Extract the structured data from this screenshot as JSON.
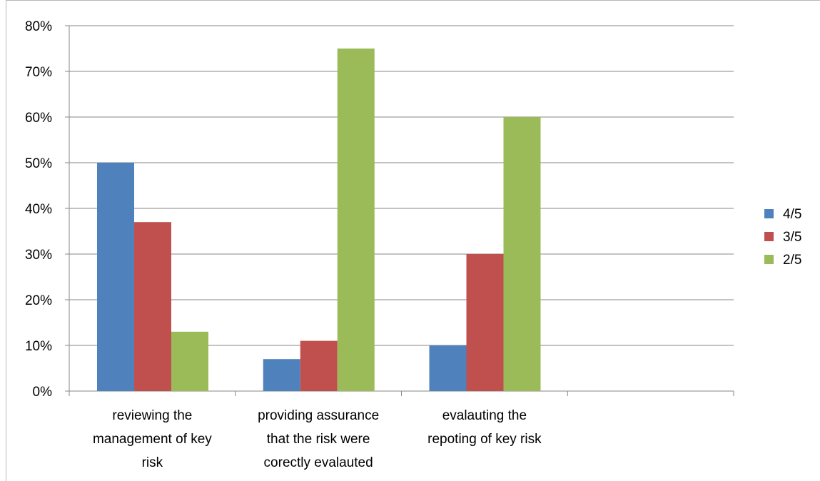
{
  "chart_data": {
    "type": "bar",
    "categories": [
      [
        "reviewing the",
        "management of key",
        "risk"
      ],
      [
        "providing assurance",
        "that the risk were",
        "corectly evalauted"
      ],
      [
        "evalauting the",
        "repoting of key risk"
      ],
      [
        ""
      ]
    ],
    "series": [
      {
        "name": "4/5",
        "color": "#4f81bd",
        "values": [
          50,
          7,
          10,
          null
        ]
      },
      {
        "name": "3/5",
        "color": "#c0504d",
        "values": [
          37,
          11,
          30,
          null
        ]
      },
      {
        "name": "2/5",
        "color": "#9bbb59",
        "values": [
          13,
          75,
          60,
          null
        ]
      }
    ],
    "ylim": [
      0,
      80
    ],
    "yticks": [
      0,
      10,
      20,
      30,
      40,
      50,
      60,
      70,
      80
    ],
    "ytick_labels": [
      "0%",
      "10%",
      "20%",
      "30%",
      "40%",
      "50%",
      "60%",
      "70%",
      "80%"
    ],
    "grid": true,
    "legend_position": "right",
    "colors": {
      "grid": "#878787",
      "axis": "#878787"
    }
  }
}
